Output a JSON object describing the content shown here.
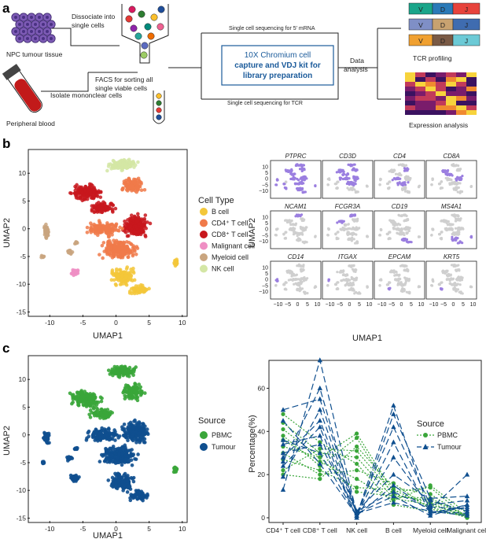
{
  "panels": {
    "a": "a",
    "b": "b",
    "c": "c"
  },
  "panel_a": {
    "npc_label": "NPC tumour tissue",
    "dissociate_label": [
      "Dissociate into",
      "single cells"
    ],
    "blood_label": "Peripheral blood",
    "isolate_label": "Isolate mononclear  cells",
    "facs_label": [
      "FACS for sorting all",
      "single viable cells"
    ],
    "seq_mrna": "Single cell sequencing for 5' mRNA",
    "seq_tcr": "Single cell sequencing for TCR",
    "chromium": [
      "10X Chromium cell",
      "capture and VDJ kit for",
      "library preparation"
    ],
    "data_analysis": [
      "Data",
      "analysis"
    ],
    "tcr_profiling": "TCR profiling",
    "expression_analysis": "Expression analysis",
    "vdj_letters": [
      "V",
      "D",
      "J"
    ],
    "colors": {
      "accent": "#1a5a9a"
    }
  },
  "panel_b": {
    "umap": {
      "xlabel": "UMAP1",
      "ylabel": "UMAP2",
      "xticks": [
        "-10",
        "-5",
        "0",
        "5",
        "10"
      ],
      "yticks": [
        "10",
        "5",
        "0",
        "-5",
        "-10",
        "-15"
      ]
    },
    "legend_title": "Cell Type",
    "legend": [
      {
        "label": "B cell",
        "color": "#f3c73a"
      },
      {
        "label": "CD4⁺ T cell",
        "color": "#f07a4a"
      },
      {
        "label": "CD8⁺ T cell",
        "color": "#c8171d"
      },
      {
        "label": "Malignant cell",
        "color": "#ef8fc4"
      },
      {
        "label": "Myeloid cell",
        "color": "#c9a57f"
      },
      {
        "label": "NK cell",
        "color": "#d4e6a5"
      }
    ],
    "genes": [
      "PTPRC",
      "CD3D",
      "CD4",
      "CD8A",
      "NCAM1",
      "FCGR3A",
      "CD19",
      "MS4A1",
      "CD14",
      "ITGAX",
      "EPCAM",
      "KRT5"
    ],
    "grid": {
      "xlabel": "UMAP1",
      "ylabel": "UMAP2",
      "xticks": [
        "−10",
        "−5",
        "0",
        "5",
        "10"
      ],
      "yticks": [
        "10",
        "5",
        "0",
        "−5",
        "−10"
      ]
    }
  },
  "panel_c": {
    "umap": {
      "xlabel": "UMAP1",
      "ylabel": "UMAP2",
      "xticks": [
        "-10",
        "-5",
        "0",
        "5",
        "10"
      ],
      "yticks": [
        "10",
        "5",
        "0",
        "-5",
        "-10",
        "-15"
      ]
    },
    "legend_title": "Source",
    "legend": [
      {
        "label": "PBMC",
        "color": "#3aa63a"
      },
      {
        "label": "Tumour",
        "color": "#0f4f8f"
      }
    ]
  },
  "chart_data": {
    "type": "line",
    "title": "",
    "xlabel": "",
    "ylabel": "Percentage(%)",
    "ylim": [
      0,
      70
    ],
    "yticks": [
      0,
      20,
      40,
      60
    ],
    "categories": [
      "CD4⁺ T cell",
      "CD8⁺ T cell",
      "NK cell",
      "B cell",
      "Myeloid cell",
      "Malignant cell"
    ],
    "legend_title": "Source",
    "series": [
      {
        "name": "PBMC",
        "color": "#3aa63a",
        "style": "dotted",
        "values_per_sample": [
          [
            38,
            24,
            37,
            10,
            8,
            1
          ],
          [
            33,
            28,
            39,
            12,
            14,
            0
          ],
          [
            44,
            30,
            28,
            9,
            6,
            1
          ],
          [
            22,
            32,
            31,
            11,
            7,
            0
          ],
          [
            30,
            20,
            22,
            16,
            4,
            1
          ],
          [
            36,
            26,
            18,
            8,
            15,
            2
          ],
          [
            27,
            22,
            14,
            13,
            5,
            0
          ],
          [
            48,
            35,
            25,
            6,
            3,
            1
          ],
          [
            20,
            18,
            33,
            14,
            11,
            0
          ],
          [
            41,
            28,
            12,
            10,
            9,
            1
          ]
        ]
      },
      {
        "name": "Tumour",
        "color": "#0f4f8f",
        "style": "dashed",
        "values_per_sample": [
          [
            13,
            73,
            2,
            7,
            3,
            1
          ],
          [
            50,
            55,
            3,
            12,
            4,
            20
          ],
          [
            26,
            60,
            1,
            52,
            2,
            6
          ],
          [
            34,
            38,
            0,
            48,
            9,
            10
          ],
          [
            28,
            45,
            2,
            42,
            6,
            8
          ],
          [
            36,
            30,
            1,
            35,
            2,
            5
          ],
          [
            24,
            42,
            0,
            28,
            5,
            4
          ],
          [
            30,
            34,
            3,
            20,
            8,
            3
          ],
          [
            45,
            25,
            1,
            15,
            3,
            2
          ],
          [
            19,
            50,
            2,
            10,
            1,
            6
          ]
        ]
      }
    ]
  }
}
